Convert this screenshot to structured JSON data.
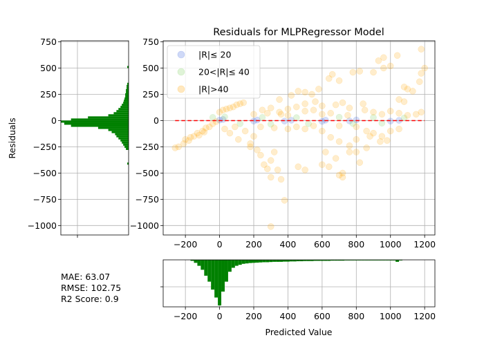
{
  "chart_data": {
    "type": "scatter",
    "title": "Residuals for MLPRegressor Model",
    "xlabel": "Predicted Value",
    "ylabel": "Residuals",
    "xlim": [
      -330,
      1260
    ],
    "ylim": [
      -1090,
      760
    ],
    "xticks": [
      -200,
      0,
      200,
      400,
      600,
      800,
      1000,
      1200
    ],
    "yticks": [
      750,
      500,
      250,
      0,
      -250,
      -500,
      -750,
      -1000
    ],
    "xtick_labels": [
      "−200",
      "0",
      "200",
      "400",
      "600",
      "800",
      "1000",
      "1200"
    ],
    "ytick_labels": [
      "750",
      "500",
      "250",
      "0",
      "−250",
      "−500",
      "−750",
      "−1000"
    ],
    "grid": true,
    "legend_position": "top-left",
    "legend": [
      {
        "label": "|R|≤ 20",
        "color": "#4169e1"
      },
      {
        "label": "20<|R|≤ 40",
        "color": "#7fcf5f"
      },
      {
        "label": "|R|>40",
        "color": "#ffa500"
      }
    ],
    "reference_line": {
      "y": 0,
      "x_range": [
        -260,
        1200
      ],
      "color": "#ff0000",
      "style": "dashed"
    },
    "series": [
      {
        "name": "|R|≤ 20",
        "color": "#4169e1",
        "points": [
          [
            0,
            5
          ],
          [
            20,
            10
          ],
          [
            200,
            -5
          ],
          [
            220,
            5
          ],
          [
            380,
            -5
          ],
          [
            420,
            3
          ],
          [
            600,
            -8
          ],
          [
            620,
            4
          ],
          [
            760,
            -3
          ],
          [
            800,
            6
          ],
          [
            1000,
            -5
          ],
          [
            1050,
            2
          ]
        ]
      },
      {
        "name": "20<|R|≤ 40",
        "color": "#7fcf5f",
        "points": [
          [
            -40,
            30
          ],
          [
            30,
            35
          ],
          [
            120,
            -30
          ],
          [
            250,
            30
          ],
          [
            300,
            -35
          ],
          [
            450,
            28
          ],
          [
            520,
            -30
          ],
          [
            700,
            32
          ],
          [
            780,
            -28
          ],
          [
            900,
            30
          ],
          [
            950,
            -25
          ],
          [
            1080,
            25
          ]
        ]
      },
      {
        "name": "|R|>40",
        "color": "#ffa500",
        "points": [
          [
            -260,
            -260
          ],
          [
            -240,
            -250
          ],
          [
            -210,
            -220
          ],
          [
            -180,
            -190
          ],
          [
            -150,
            -150
          ],
          [
            -130,
            -120
          ],
          [
            -100,
            -100
          ],
          [
            -80,
            -70
          ],
          [
            -60,
            -60
          ],
          [
            -40,
            -30
          ],
          [
            -20,
            -10
          ],
          [
            -200,
            -180
          ],
          [
            -170,
            -160
          ],
          [
            -120,
            -140
          ],
          [
            -90,
            -110
          ],
          [
            0,
            80
          ],
          [
            20,
            100
          ],
          [
            40,
            110
          ],
          [
            60,
            120
          ],
          [
            80,
            130
          ],
          [
            100,
            150
          ],
          [
            120,
            160
          ],
          [
            140,
            170
          ],
          [
            30,
            -80
          ],
          [
            60,
            -120
          ],
          [
            90,
            -60
          ],
          [
            110,
            -180
          ],
          [
            150,
            -100
          ],
          [
            180,
            -220
          ],
          [
            200,
            -150
          ],
          [
            180,
            -250
          ],
          [
            220,
            -280
          ],
          [
            240,
            -330
          ],
          [
            260,
            -420
          ],
          [
            280,
            -460
          ],
          [
            300,
            -380
          ],
          [
            320,
            -300
          ],
          [
            300,
            -540
          ],
          [
            360,
            -560
          ],
          [
            380,
            -760
          ],
          [
            300,
            -1010
          ],
          [
            340,
            -470
          ],
          [
            250,
            100
          ],
          [
            300,
            120
          ],
          [
            350,
            80
          ],
          [
            400,
            110
          ],
          [
            450,
            130
          ],
          [
            500,
            90
          ],
          [
            550,
            100
          ],
          [
            420,
            240
          ],
          [
            460,
            280
          ],
          [
            500,
            270
          ],
          [
            540,
            250
          ],
          [
            580,
            300
          ],
          [
            350,
            200
          ],
          [
            600,
            -100
          ],
          [
            650,
            -160
          ],
          [
            700,
            -200
          ],
          [
            620,
            -300
          ],
          [
            680,
            -360
          ],
          [
            720,
            -500
          ],
          [
            640,
            -440
          ],
          [
            600,
            -420
          ],
          [
            760,
            -240
          ],
          [
            800,
            -180
          ],
          [
            820,
            -400
          ],
          [
            760,
            -300
          ],
          [
            700,
            -520
          ],
          [
            720,
            -540
          ],
          [
            500,
            -470
          ],
          [
            460,
            -440
          ],
          [
            640,
            400
          ],
          [
            660,
            440
          ],
          [
            700,
            380
          ],
          [
            780,
            460
          ],
          [
            820,
            470
          ],
          [
            900,
            460
          ],
          [
            960,
            500
          ],
          [
            1000,
            520
          ],
          [
            930,
            570
          ],
          [
            960,
            600
          ],
          [
            1040,
            620
          ],
          [
            1180,
            680
          ],
          [
            1200,
            500
          ],
          [
            1180,
            450
          ],
          [
            1170,
            370
          ],
          [
            1080,
            320
          ],
          [
            1100,
            300
          ],
          [
            1130,
            280
          ],
          [
            1050,
            200
          ],
          [
            1080,
            180
          ],
          [
            850,
            100
          ],
          [
            900,
            80
          ],
          [
            950,
            60
          ],
          [
            1000,
            90
          ],
          [
            1050,
            70
          ],
          [
            1100,
            50
          ],
          [
            1150,
            60
          ],
          [
            1180,
            80
          ],
          [
            800,
            -60
          ],
          [
            860,
            -100
          ],
          [
            900,
            -120
          ],
          [
            950,
            -150
          ],
          [
            1000,
            -100
          ],
          [
            1050,
            -80
          ],
          [
            800,
            -300
          ],
          [
            860,
            -260
          ],
          [
            940,
            -200
          ],
          [
            880,
            -150
          ],
          [
            980,
            -190
          ],
          [
            400,
            50
          ],
          [
            450,
            -60
          ],
          [
            500,
            -80
          ],
          [
            550,
            -50
          ],
          [
            600,
            60
          ],
          [
            650,
            70
          ],
          [
            700,
            -50
          ],
          [
            750,
            50
          ],
          [
            200,
            60
          ],
          [
            240,
            -60
          ],
          [
            280,
            70
          ],
          [
            320,
            -70
          ],
          [
            360,
            60
          ],
          [
            400,
            -80
          ],
          [
            500,
            160
          ],
          [
            560,
            180
          ],
          [
            600,
            140
          ],
          [
            680,
            150
          ],
          [
            720,
            170
          ],
          [
            760,
            120
          ],
          [
            840,
            160
          ]
        ]
      }
    ],
    "histogram_y": {
      "bins": [
        [
          -420,
          -400,
          2
        ],
        [
          -280,
          -260,
          4
        ],
        [
          -260,
          -240,
          6
        ],
        [
          -240,
          -220,
          8
        ],
        [
          -220,
          -200,
          10
        ],
        [
          -200,
          -180,
          12
        ],
        [
          -180,
          -160,
          15
        ],
        [
          -160,
          -140,
          18
        ],
        [
          -140,
          -120,
          20
        ],
        [
          -120,
          -100,
          25
        ],
        [
          -100,
          -80,
          30
        ],
        [
          -80,
          -60,
          45
        ],
        [
          -60,
          -40,
          85
        ],
        [
          -40,
          -20,
          95
        ],
        [
          -20,
          0,
          100
        ],
        [
          0,
          20,
          85
        ],
        [
          20,
          40,
          60
        ],
        [
          40,
          60,
          30
        ],
        [
          60,
          80,
          22
        ],
        [
          80,
          100,
          18
        ],
        [
          100,
          120,
          15
        ],
        [
          120,
          140,
          12
        ],
        [
          140,
          160,
          10
        ],
        [
          160,
          180,
          8
        ],
        [
          180,
          200,
          7
        ],
        [
          200,
          220,
          6
        ],
        [
          220,
          240,
          5
        ],
        [
          240,
          260,
          5
        ],
        [
          260,
          280,
          4
        ],
        [
          280,
          300,
          4
        ],
        [
          300,
          320,
          3
        ],
        [
          320,
          340,
          3
        ],
        [
          340,
          360,
          2
        ],
        [
          500,
          520,
          2
        ]
      ],
      "xticks": [],
      "color": "#008000"
    },
    "histogram_x": {
      "bins": [
        [
          -170,
          -150,
          5
        ],
        [
          -150,
          -130,
          15
        ],
        [
          -130,
          -110,
          30
        ],
        [
          -110,
          -90,
          50
        ],
        [
          -90,
          -70,
          80
        ],
        [
          -70,
          -50,
          110
        ],
        [
          -50,
          -30,
          150
        ],
        [
          -30,
          -10,
          190
        ],
        [
          -10,
          10,
          230
        ],
        [
          10,
          30,
          160
        ],
        [
          30,
          50,
          110
        ],
        [
          50,
          70,
          60
        ],
        [
          70,
          90,
          40
        ],
        [
          90,
          110,
          30
        ],
        [
          110,
          130,
          25
        ],
        [
          130,
          150,
          20
        ],
        [
          150,
          170,
          18
        ],
        [
          170,
          190,
          16
        ],
        [
          190,
          210,
          15
        ],
        [
          210,
          230,
          14
        ],
        [
          230,
          250,
          13
        ],
        [
          250,
          270,
          12
        ],
        [
          270,
          290,
          12
        ],
        [
          290,
          310,
          11
        ],
        [
          310,
          330,
          10
        ],
        [
          330,
          350,
          10
        ],
        [
          350,
          370,
          10
        ],
        [
          370,
          390,
          9
        ],
        [
          390,
          410,
          9
        ],
        [
          410,
          430,
          8
        ],
        [
          430,
          450,
          8
        ],
        [
          450,
          470,
          7
        ],
        [
          470,
          490,
          7
        ],
        [
          490,
          510,
          6
        ],
        [
          510,
          530,
          6
        ],
        [
          530,
          550,
          6
        ],
        [
          550,
          570,
          5
        ],
        [
          570,
          590,
          5
        ],
        [
          590,
          610,
          5
        ],
        [
          610,
          630,
          5
        ],
        [
          630,
          650,
          5
        ],
        [
          650,
          670,
          4
        ],
        [
          670,
          690,
          4
        ],
        [
          690,
          710,
          4
        ],
        [
          710,
          730,
          4
        ],
        [
          730,
          750,
          3
        ],
        [
          750,
          770,
          3
        ],
        [
          770,
          790,
          3
        ],
        [
          790,
          810,
          3
        ],
        [
          810,
          830,
          3
        ],
        [
          830,
          850,
          3
        ],
        [
          850,
          870,
          3
        ],
        [
          870,
          890,
          3
        ],
        [
          890,
          910,
          3
        ],
        [
          910,
          930,
          3
        ],
        [
          930,
          950,
          3
        ],
        [
          950,
          970,
          3
        ],
        [
          970,
          990,
          3
        ],
        [
          990,
          1010,
          3
        ],
        [
          1010,
          1030,
          3
        ],
        [
          1030,
          1050,
          10
        ],
        [
          1050,
          1070,
          3
        ]
      ],
      "xtick_labels": [
        "−200",
        "0",
        "200",
        "400",
        "600",
        "800",
        "1000",
        "1200"
      ],
      "color": "#008000"
    },
    "metrics": [
      "MAE: 63.07",
      "RMSE: 102.75",
      "R2 Score: 0.9"
    ]
  }
}
